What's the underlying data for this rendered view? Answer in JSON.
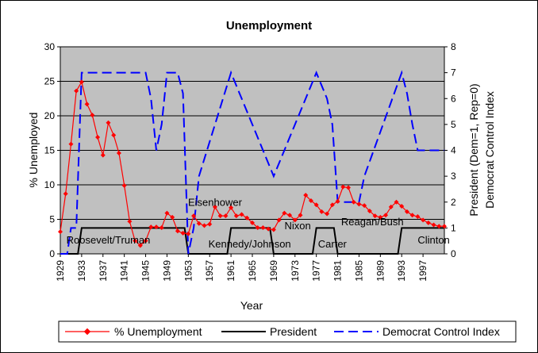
{
  "chart_data": {
    "type": "line",
    "title": "Unemployment",
    "xlabel": "Year",
    "ylabel": "% Unemployed",
    "y2label_line1": "President (Dem=1, Rep=0)",
    "y2label_line2": "Democrat Control Index",
    "x_ticks": [
      "1929",
      "1933",
      "1937",
      "1941",
      "1945",
      "1949",
      "1953",
      "1957",
      "1961",
      "1965",
      "1969",
      "1973",
      "1977",
      "1981",
      "1985",
      "1989",
      "1993",
      "1997"
    ],
    "xlim": [
      1929,
      2001
    ],
    "ylim": [
      0,
      30
    ],
    "y_ticks": [
      0,
      5,
      10,
      15,
      20,
      25,
      30
    ],
    "y2lim": [
      0,
      8
    ],
    "y2_ticks": [
      0,
      1,
      2,
      3,
      4,
      5,
      6,
      7,
      8
    ],
    "grid": true,
    "legend_position": "bottom",
    "colors": {
      "plot_bg": "#c0c0c0",
      "unemployment": "#ff0000",
      "president": "#000000",
      "dci": "#0000ff",
      "grid": "#000000"
    },
    "series": [
      {
        "name": "% Unemployment",
        "axis": "left",
        "style": "red-line-diamond",
        "x": [
          1929,
          1930,
          1931,
          1932,
          1933,
          1934,
          1935,
          1936,
          1937,
          1938,
          1939,
          1940,
          1941,
          1942,
          1943,
          1944,
          1945,
          1946,
          1947,
          1948,
          1949,
          1950,
          1951,
          1952,
          1953,
          1954,
          1955,
          1956,
          1957,
          1958,
          1959,
          1960,
          1961,
          1962,
          1963,
          1964,
          1965,
          1966,
          1967,
          1968,
          1969,
          1970,
          1971,
          1972,
          1973,
          1974,
          1975,
          1976,
          1977,
          1978,
          1979,
          1980,
          1981,
          1982,
          1983,
          1984,
          1985,
          1986,
          1987,
          1988,
          1989,
          1990,
          1991,
          1992,
          1993,
          1994,
          1995,
          1996,
          1997,
          1998,
          1999,
          2000,
          2001
        ],
        "values": [
          3.2,
          8.7,
          15.9,
          23.6,
          24.9,
          21.7,
          20.1,
          16.9,
          14.3,
          19.0,
          17.2,
          14.6,
          9.9,
          4.7,
          1.9,
          1.2,
          1.9,
          3.9,
          3.9,
          3.8,
          5.9,
          5.3,
          3.3,
          3.0,
          2.9,
          5.5,
          4.4,
          4.1,
          4.3,
          6.8,
          5.5,
          5.5,
          6.7,
          5.5,
          5.7,
          5.2,
          4.5,
          3.8,
          3.8,
          3.6,
          3.5,
          4.9,
          5.9,
          5.6,
          4.9,
          5.6,
          8.5,
          7.7,
          7.1,
          6.1,
          5.8,
          7.1,
          7.6,
          9.7,
          9.6,
          7.5,
          7.2,
          7.0,
          6.2,
          5.5,
          5.3,
          5.6,
          6.8,
          7.5,
          6.9,
          6.1,
          5.6,
          5.4,
          4.9,
          4.5,
          4.2,
          4.0,
          4.0
        ]
      },
      {
        "name": "President",
        "axis": "right",
        "style": "black-solid",
        "x": [
          1929,
          1932.3,
          1933,
          1952.3,
          1953,
          1960.3,
          1961,
          1968.3,
          1969,
          1976.3,
          1977,
          1980.3,
          1981,
          1992.3,
          1993,
          2001
        ],
        "values": [
          0,
          0,
          1,
          1,
          0,
          0,
          1,
          1,
          0,
          0,
          1,
          1,
          0,
          0,
          1,
          1
        ]
      },
      {
        "name": "Democrat Control Index",
        "axis": "right",
        "style": "blue-dashed",
        "x": [
          1929,
          1930.3,
          1931,
          1932,
          1933,
          1945,
          1946,
          1947,
          1948,
          1949,
          1951,
          1952,
          1953,
          1954,
          1955,
          1961,
          1969,
          1977,
          1979,
          1980,
          1981,
          1985,
          1986,
          1993,
          1994,
          1995,
          1996,
          2001
        ],
        "values": [
          0,
          0,
          1,
          1,
          7,
          7,
          6,
          4,
          5,
          7,
          7,
          6.2,
          0,
          1,
          3,
          7,
          3,
          7,
          6,
          5,
          2,
          2,
          3,
          7,
          6.2,
          5,
          4,
          4
        ]
      }
    ],
    "annotations": [
      {
        "text": "Roosevelt/Truman",
        "x": 1938,
        "y2": 0.4
      },
      {
        "text": "Eisenhower",
        "x": 1958,
        "y2": 1.85
      },
      {
        "text": "Kennedy/Johnson",
        "x": 1964.5,
        "y2": 0.25
      },
      {
        "text": "Nixon",
        "x": 1973.5,
        "y2": 0.95
      },
      {
        "text": "Carter",
        "x": 1980,
        "y2": 0.25
      },
      {
        "text": "Reagan/Bush",
        "x": 1987.5,
        "y2": 1.1
      },
      {
        "text": "Clinton",
        "x": 1999,
        "y2": 0.4
      }
    ]
  }
}
